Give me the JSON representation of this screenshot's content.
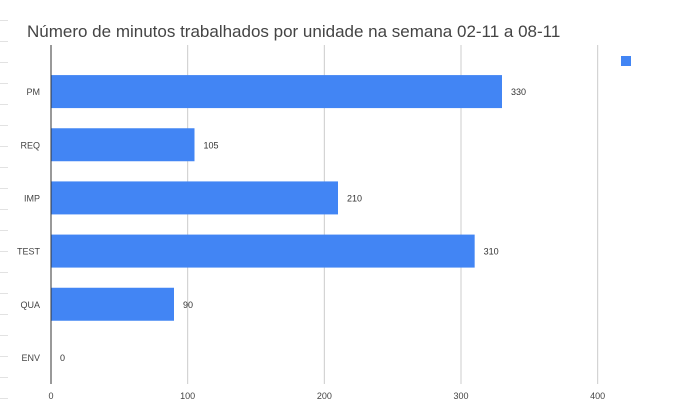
{
  "chart_data": {
    "type": "bar",
    "orientation": "horizontal",
    "title": "Número de minutos trabalhados por unidade na semana 02-11 a 08-11",
    "categories": [
      "PM",
      "REQ",
      "IMP",
      "TEST",
      "QUA",
      "ENV"
    ],
    "series": [
      {
        "values": [
          330,
          105,
          210,
          310,
          90,
          0
        ],
        "color": "#4285f4"
      }
    ],
    "data_labels": [
      "330",
      "105",
      "210",
      "310",
      "90",
      "0"
    ],
    "xlim": [
      0,
      420
    ],
    "x_ticks": [
      0,
      100,
      200,
      300,
      400
    ],
    "x_tick_labels": [
      "0",
      "100",
      "200",
      "300",
      "400"
    ],
    "xlabel": "",
    "ylabel": "",
    "grid": true,
    "legend_position": "top-right",
    "colors": {
      "bar": "#4285f4",
      "gridline": "#cccccc",
      "axis": "#333333",
      "title": "#444444",
      "label": "#444444"
    }
  }
}
